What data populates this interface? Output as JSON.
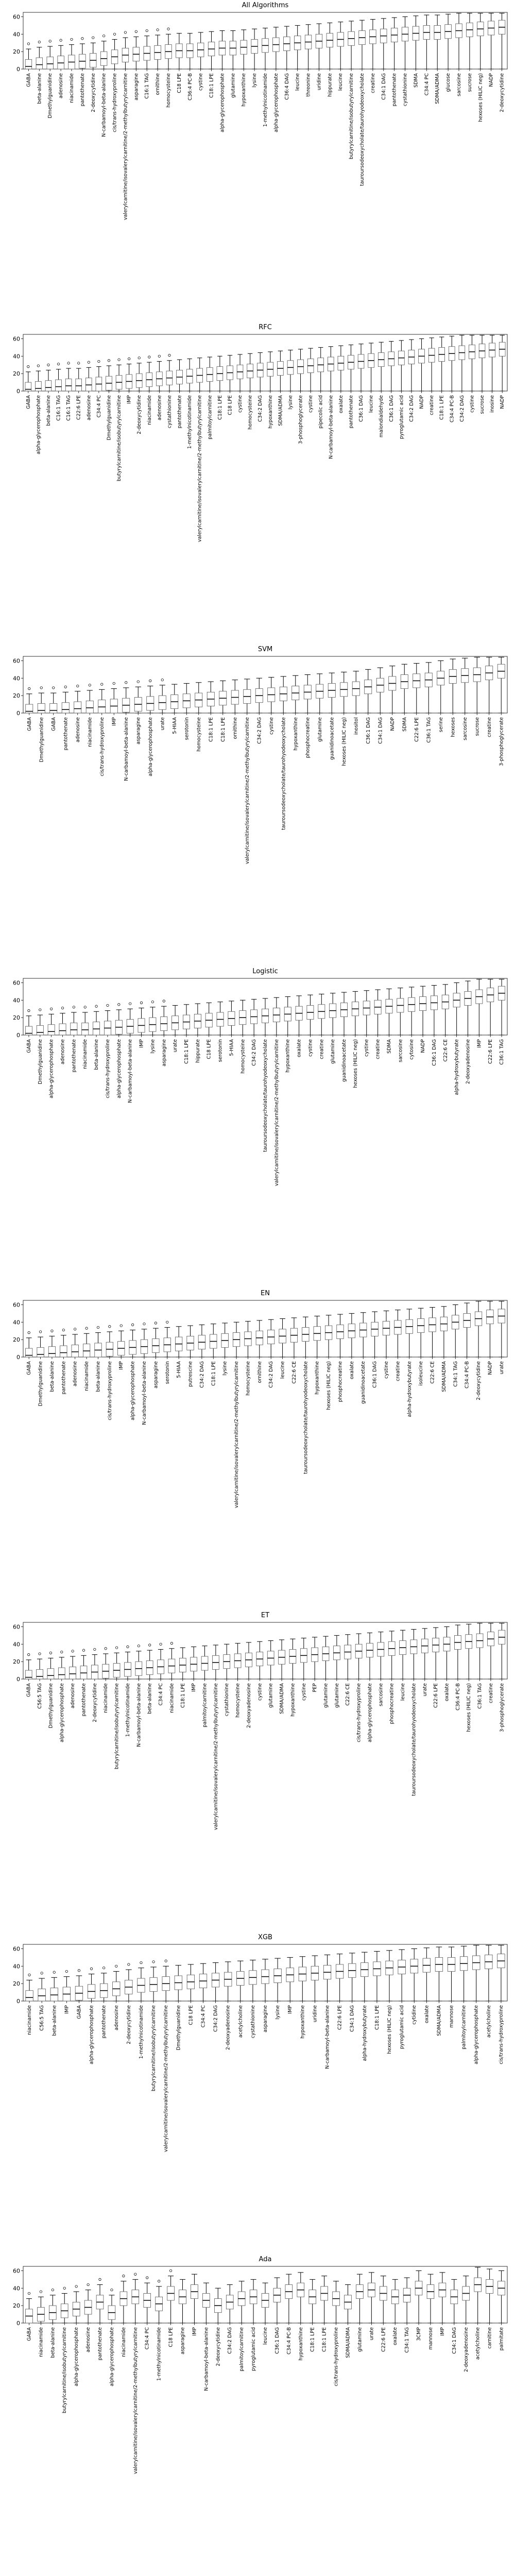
{
  "chart_data": [
    {
      "type": "box",
      "title": "All Algorithms",
      "yticks": [
        0,
        20,
        40,
        60
      ],
      "ylim": [
        0,
        65
      ],
      "categories": [
        "GABA",
        "beta-alanine",
        "Dmethylguanidine",
        "adenosine",
        "niacinamide",
        "pantothenate",
        "2-deoxycytidine",
        "N-carbamoyl-beta-alanine",
        "cis/trans-hydroxyproline",
        "valerylcarnitine/isovalerylcarnitine/2-methylbutyrylcarnitine",
        "asparagine",
        "C16:1 TAG",
        "ornithine",
        "homocysteine",
        "C18 LPE",
        "C36:4 PC-B",
        "cystine",
        "C18:1 LPE",
        "alpha-glycerophosphate",
        "glutamine",
        "hypoxanthine",
        "lysine",
        "1-methylnicotinamide",
        "alpha-glycerophosphate",
        "C36:4 DAG",
        "leucine",
        "threonine",
        "uridine",
        "hippurate",
        "leucine",
        "butyrylcarnitine/isobutyrylcarnitine",
        "tauroursodeoxycholate/taurohyodeoxycholate",
        "creatine",
        "C34:1 DAG",
        "pantothenate",
        "cystathionine",
        "SDMA",
        "C34:4 PC",
        "SDMA/ADMA",
        "glucose",
        "sarcosine",
        "sucrose",
        "hexoses (HILIC neg)",
        "NADP",
        "2-deoxycytidine"
      ],
      "medians": [
        3,
        5,
        6,
        7,
        8,
        9,
        10,
        12,
        14,
        16,
        17,
        18,
        19,
        20,
        21,
        21,
        22,
        23,
        24,
        24,
        25,
        26,
        27,
        28,
        29,
        30,
        31,
        32,
        33,
        34,
        35,
        36,
        37,
        38,
        39,
        40,
        41,
        42,
        42,
        43,
        44,
        45,
        46,
        47,
        48
      ]
    },
    {
      "type": "box",
      "title": "RFC",
      "yticks": [
        0,
        20,
        40,
        60
      ],
      "ylim": [
        0,
        65
      ],
      "categories": [
        "GABA",
        "alpha-glycerophosphate",
        "beta-alanine",
        "C16:1 TAG",
        "C16:1 TAG",
        "C22:6 LPE",
        "adenosine",
        "C34:4 PC",
        "Dmethylguanidine",
        "butyrylcarnitine/isobutyrylcarnitine",
        "IMP",
        "2-deoxycytidine",
        "niacinamide",
        "adenosine",
        "cystathionine",
        "pantothenate",
        "1-methylnicotinamide",
        "valerylcarnitine/isovalerylcarnitine/2-methylbutyrylcarnitine",
        "palmitoylcarnitine",
        "C18:1 LPE",
        "C18 LPE",
        "cystine",
        "homocysteine",
        "C34:2 DAG",
        "hypoxanthine",
        "SDMA/ADMA",
        "lysine",
        "3-phosphoglycerate",
        "cystine",
        "pipecolic acid",
        "N-carbamoyl-beta-alanine",
        "oxalate",
        "pantothenate",
        "C36:1 DAG",
        "leucine",
        "malondialdehyde",
        "C36:1 DAG",
        "pyroglutamic acid",
        "C34:2 DAG",
        "NADP",
        "creatine",
        "C18:1 LPE",
        "C34:4 PC-B",
        "C34:2 DAG",
        "cystine",
        "sucrose",
        "inosine",
        "NADP"
      ],
      "medians": [
        2,
        3,
        4,
        5,
        6,
        6,
        7,
        8,
        9,
        10,
        11,
        12,
        13,
        14,
        15,
        16,
        17,
        18,
        19,
        20,
        21,
        22,
        23,
        24,
        25,
        26,
        27,
        28,
        29,
        30,
        31,
        32,
        33,
        34,
        35,
        36,
        37,
        38,
        39,
        40,
        41,
        42,
        43,
        44,
        45,
        46,
        47,
        48
      ]
    },
    {
      "type": "box",
      "title": "SVM",
      "yticks": [
        0,
        20,
        40,
        60
      ],
      "ylim": [
        0,
        65
      ],
      "categories": [
        "GABA",
        "Dmethylguanidine",
        "GABA",
        "pantothenate",
        "adenosine",
        "niacinamide",
        "cis/trans-hydroxyproline",
        "IMP",
        "N-carbamoyl-beta-alanine",
        "asparagine",
        "alpha-glycerophosphate",
        "urate",
        "5-HIAA",
        "serotonin",
        "homocysteine",
        "C18:1 LPE",
        "C18:1 LPE",
        "ornithine",
        "valerylcarnitine/isovalerylcarnitine/2-methylbutyrylcarnitine",
        "C34:2 DAG",
        "cystine",
        "tauroursodeoxycholate/taurohyodeoxycholate",
        "hypoxanthine",
        "phosphocreatine",
        "glutamine",
        "guanidinoacetate",
        "hexoses (HILIC neg)",
        "inositol",
        "C36:1 DAG",
        "C34:1 DAG",
        "NADP",
        "SDMA",
        "C22:6 LPE",
        "C36:1 TAG",
        "serine",
        "hexoses",
        "sarcosine",
        "sucrose",
        "creatine",
        "3-phosphoglycerate"
      ],
      "medians": [
        2,
        3,
        3,
        4,
        5,
        6,
        7,
        8,
        9,
        10,
        11,
        12,
        13,
        14,
        15,
        16,
        17,
        18,
        19,
        20,
        21,
        22,
        23,
        24,
        25,
        26,
        27,
        28,
        30,
        32,
        34,
        36,
        37,
        38,
        40,
        42,
        43,
        44,
        46,
        48
      ]
    },
    {
      "type": "box",
      "title": "Logistic",
      "yticks": [
        0,
        20,
        40,
        60
      ],
      "ylim": [
        0,
        65
      ],
      "categories": [
        "GABA",
        "Dmethylguanidine",
        "alpha-glycerophosphate",
        "adenosine",
        "pantothenate",
        "niacinamide",
        "beta-alanine",
        "cis/trans-hydroxyproline",
        "alpha-glycerophosphate",
        "N-carbamoyl-beta-alanine",
        "IMP",
        "lysine",
        "asparagine",
        "urate",
        "C18:1 LPE",
        "hippurate",
        "C18 LPE",
        "serotonin",
        "5-HIAA",
        "homocysteine",
        "C34:2 DAG",
        "tauroursodeoxycholate/taurohyodeoxycholate",
        "valerylcarnitine/isovalerylcarnitine/2-methylbutyrylcarnitine",
        "hypoxanthine",
        "oxalate",
        "cystine",
        "creatine",
        "glutamine",
        "guanidinoacetate",
        "hexoses (HILIC neg)",
        "cystine",
        "creatine",
        "SDMA",
        "sarcosine",
        "cytosine",
        "NADP",
        "C36:1 DAG",
        "C22:6 CE",
        "alpha-hydroxybutyrate",
        "2-deoxyadenosine",
        "IMP",
        "C22:6 LPE",
        "C36:1 TAG"
      ],
      "medians": [
        2,
        3,
        4,
        5,
        6,
        6,
        7,
        8,
        9,
        10,
        11,
        12,
        13,
        14,
        15,
        16,
        17,
        18,
        19,
        20,
        21,
        22,
        23,
        24,
        25,
        26,
        27,
        28,
        29,
        30,
        31,
        32,
        33,
        34,
        35,
        36,
        37,
        38,
        40,
        42,
        44,
        46,
        48
      ]
    },
    {
      "type": "box",
      "title": "EN",
      "yticks": [
        0,
        20,
        40,
        60
      ],
      "ylim": [
        0,
        65
      ],
      "categories": [
        "GABA",
        "Dmethylguanidine",
        "beta-alanine",
        "pantothenate",
        "adenosine",
        "niacinamide",
        "beta-alanine",
        "cis/trans-hydroxyproline",
        "IMP",
        "alpha-glycerophosphate",
        "N-carbamoyl-beta-alanine",
        "asparagine",
        "serotonin",
        "5-HIAA",
        "putrescine",
        "C34:2 DAG",
        "C18:1 LPE",
        "lysine",
        "valerylcarnitine/isovalerylcarnitine/2-methylbutyrylcarnitine",
        "homocysteine",
        "ornithine",
        "C34:2 DAG",
        "leucine",
        "C22:6 CE",
        "tauroursodeoxycholate/taurohyodeoxycholate",
        "hypoxanthine",
        "hexoses (HILIC neg)",
        "phosphocreatine",
        "oxalate",
        "guanidinoacetate",
        "C36:1 DAG",
        "cystine",
        "creatine",
        "alpha-hydroxybutyrate",
        "isoleucine",
        "C22:6 CE",
        "SDMA/ADMA",
        "C34:1 TAG",
        "C34:4 PC-B",
        "2-deoxycytidine",
        "NADP",
        "urate"
      ],
      "medians": [
        2,
        3,
        4,
        5,
        6,
        7,
        8,
        9,
        10,
        11,
        12,
        13,
        14,
        15,
        16,
        17,
        18,
        19,
        20,
        21,
        22,
        23,
        24,
        25,
        26,
        27,
        28,
        29,
        30,
        31,
        32,
        33,
        34,
        35,
        36,
        37,
        38,
        40,
        42,
        44,
        46,
        47
      ]
    },
    {
      "type": "box",
      "title": "ET",
      "yticks": [
        0,
        20,
        40,
        60
      ],
      "ylim": [
        0,
        65
      ],
      "categories": [
        "GABA",
        "C56:5 TAG",
        "Dmethylguanidine",
        "alpha-glycerophosphate",
        "adenosine",
        "pantothenate",
        "2-deoxycytidine",
        "niacinamide",
        "butyrylcarnitine/isobutyrylcarnitine",
        "1-methylnicotinamide",
        "N-carbamoyl-beta-alanine",
        "beta-alanine",
        "C34:4 PC",
        "niacinamide",
        "C18:1 LPE",
        "IMP",
        "palmitoylcarnitine",
        "valerylcarnitine/isovalerylcarnitine/2-methylbutyrylcarnitine",
        "cystathionine",
        "homocysteine",
        "2-deoxyadenosine",
        "cystine",
        "glutamine",
        "SDMA/ADMA",
        "hypoxanthine",
        "cystine",
        "PEP",
        "glutamine",
        "glutamine",
        "C22:6 CE",
        "cis/trans-hydroxyproline",
        "alpha-glycerophosphate",
        "sarcosine",
        "phosphocreatine",
        "leucine",
        "tauroursodeoxycholate/taurohyodeoxycholate",
        "urate",
        "C22:6 LPE",
        "oxalate",
        "C36:4 PC-B",
        "hexoses (HILIC neg)",
        "C36:1 TAG",
        "creatine",
        "3-phosphoglycerate"
      ],
      "medians": [
        2,
        3,
        4,
        5,
        6,
        7,
        8,
        9,
        10,
        11,
        12,
        13,
        14,
        15,
        16,
        17,
        18,
        19,
        20,
        21,
        22,
        23,
        24,
        25,
        26,
        27,
        28,
        29,
        30,
        31,
        32,
        33,
        34,
        35,
        36,
        37,
        38,
        39,
        40,
        42,
        43,
        44,
        46,
        48
      ]
    },
    {
      "type": "box",
      "title": "XGB",
      "yticks": [
        0,
        20,
        40,
        60
      ],
      "ylim": [
        0,
        65
      ],
      "categories": [
        "niacinamide",
        "C56:5 TAG",
        "beta-alanine",
        "IMP",
        "GABA",
        "alpha-glycerophosphate",
        "pantothenate",
        "adenosine",
        "2-deoxycytidine",
        "1-methylnicotinamide",
        "butyrylcarnitine/isobutyrylcarnitine",
        "valerylcarnitine/isovalerylcarnitine/2-methylbutyrylcarnitine",
        "Dmethylguanidine",
        "C18 LPE",
        "C34:4 PC",
        "C34:2 DAG",
        "2-deoxyadenosine",
        "acetylcholine",
        "cystathionine",
        "asparagine",
        "lysine",
        "IMP",
        "hypoxanthine",
        "uridine",
        "N-carbamoyl-beta-alanine",
        "C22:6 LPE",
        "C34:1 DAG",
        "alpha-hydroxybutyrate",
        "C18:1 LPE",
        "hexoses (HILIC neg)",
        "pyroglutamic acid",
        "cytidine",
        "oxalate",
        "SDMA/ADMA",
        "mannose",
        "palmitoylcarnitine",
        "alpha-glycerophosphate",
        "acetylcholine",
        "cis/trans-hydroxyproline"
      ],
      "medians": [
        4,
        6,
        7,
        8,
        9,
        11,
        12,
        14,
        16,
        18,
        19,
        20,
        21,
        22,
        23,
        24,
        25,
        26,
        27,
        28,
        29,
        30,
        31,
        32,
        33,
        34,
        35,
        36,
        37,
        38,
        39,
        40,
        41,
        42,
        42,
        43,
        44,
        45,
        46
      ]
    },
    {
      "type": "box",
      "title": "Ada",
      "yticks": [
        0,
        20,
        40,
        60
      ],
      "ylim": [
        0,
        65
      ],
      "categories": [
        "GABA",
        "niacinamide",
        "beta-alanine",
        "butyrylcarnitine/isobutyrylcarnitine",
        "alpha-glycerophosphate",
        "adenosine",
        "pantothenate",
        "alpha-glycerophosphate",
        "niacinamide",
        "valerylcarnitine/isovalerylcarnitine/2-methylbutyrylcarnitine",
        "C34:4 PC",
        "1-methylnicotinamide",
        "C18 LPE",
        "asparagine",
        "IMP",
        "N-carbamoyl-beta-alanine",
        "2-deoxycytidine",
        "C34:2 DAG",
        "palmitoylcarnitine",
        "pyroglutamic acid",
        "leucine",
        "C36:1 DAG",
        "C34:4 PC-B",
        "hypoxanthine",
        "C18:1 LPE",
        "C18:1 LPE",
        "cis/trans-hydroxyproline",
        "SDMA/ADMA",
        "glutamine",
        "urate",
        "C22:6 LPE",
        "oxalate",
        "C34:1 TAG",
        "3CMP",
        "mannose",
        "IMP",
        "C34:1 DAG",
        "2-deoxyadenosine",
        "acetylcholine",
        "carnitine",
        "palmitate"
      ],
      "medians": [
        8,
        10,
        12,
        14,
        16,
        18,
        24,
        12,
        28,
        30,
        26,
        22,
        34,
        30,
        36,
        26,
        20,
        24,
        28,
        30,
        26,
        32,
        36,
        38,
        30,
        34,
        28,
        24,
        36,
        38,
        34,
        30,
        32,
        40,
        36,
        38,
        30,
        34,
        44,
        42,
        40
      ]
    }
  ]
}
